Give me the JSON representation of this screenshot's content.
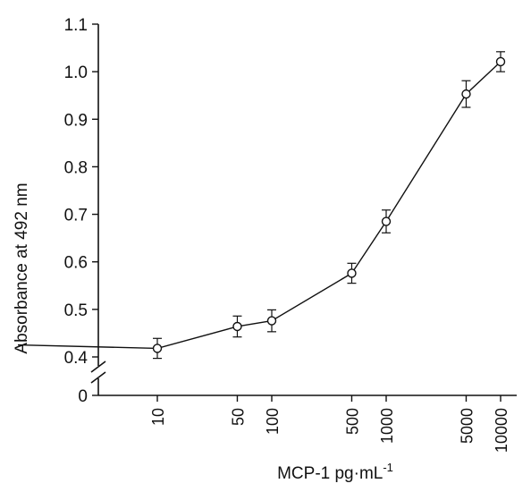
{
  "chart_data": {
    "type": "line",
    "title": "",
    "xlabel": "MCP-1  pg·mL",
    "xlabel_superscript": "-1",
    "ylabel": "Absorbance at 492 nm",
    "x_scale": "log",
    "y_axis_break": true,
    "y_ticks": [
      "0",
      "0.4",
      "0.5",
      "0.6",
      "0.7",
      "0.8",
      "0.9",
      "1.0",
      "1.1"
    ],
    "x_ticks": [
      "10",
      "50",
      "100",
      "500",
      "1000",
      "5000",
      "10000"
    ],
    "ylim": [
      0.4,
      1.1
    ],
    "grid": false,
    "legend": "none",
    "series": [
      {
        "x": [
          10,
          50,
          100,
          500,
          1000,
          5000,
          10000
        ],
        "values": [
          0.418,
          0.464,
          0.476,
          0.576,
          0.685,
          0.953,
          1.021
        ],
        "error": [
          0.021,
          0.022,
          0.023,
          0.021,
          0.024,
          0.028,
          0.021
        ]
      }
    ]
  }
}
